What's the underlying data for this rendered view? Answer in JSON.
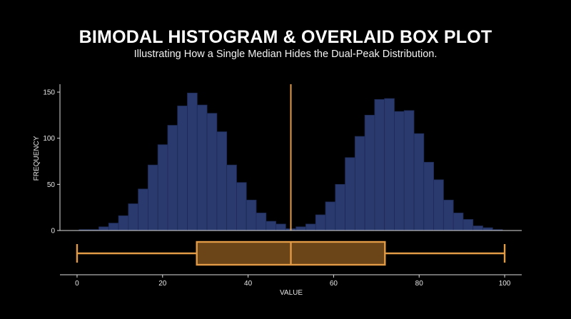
{
  "chart_data": {
    "type": "bar",
    "title": "BIMODAL HISTOGRAM & OVERLAID BOX PLOT",
    "subtitle": "Illustrating How a Single Median Hides the Dual-Peak Distribution.",
    "xlabel": "VALUE",
    "ylabel": "FREQUENCY",
    "xlim": [
      -4,
      104
    ],
    "ylim": [
      0,
      157
    ],
    "x_ticks": [
      0,
      20,
      40,
      60,
      80,
      100
    ],
    "y_ticks": [
      0,
      50,
      100,
      150
    ],
    "median_line": 50,
    "histogram": {
      "bin_width": 2.3,
      "bins": [
        {
          "x0": 0.5,
          "count": 1
        },
        {
          "x0": 2.8,
          "count": 1
        },
        {
          "x0": 5.1,
          "count": 4
        },
        {
          "x0": 7.4,
          "count": 8
        },
        {
          "x0": 9.7,
          "count": 16
        },
        {
          "x0": 12.0,
          "count": 29
        },
        {
          "x0": 14.3,
          "count": 45
        },
        {
          "x0": 16.6,
          "count": 71
        },
        {
          "x0": 18.9,
          "count": 93
        },
        {
          "x0": 21.2,
          "count": 114
        },
        {
          "x0": 23.5,
          "count": 135
        },
        {
          "x0": 25.8,
          "count": 149
        },
        {
          "x0": 28.1,
          "count": 136
        },
        {
          "x0": 30.4,
          "count": 127
        },
        {
          "x0": 32.7,
          "count": 107
        },
        {
          "x0": 35.0,
          "count": 71
        },
        {
          "x0": 37.3,
          "count": 52
        },
        {
          "x0": 39.6,
          "count": 33
        },
        {
          "x0": 41.9,
          "count": 19
        },
        {
          "x0": 44.2,
          "count": 10
        },
        {
          "x0": 46.5,
          "count": 7
        },
        {
          "x0": 48.8,
          "count": 2
        },
        {
          "x0": 51.2,
          "count": 4
        },
        {
          "x0": 53.5,
          "count": 7
        },
        {
          "x0": 55.8,
          "count": 17
        },
        {
          "x0": 58.1,
          "count": 31
        },
        {
          "x0": 60.4,
          "count": 50
        },
        {
          "x0": 62.7,
          "count": 79
        },
        {
          "x0": 65.0,
          "count": 102
        },
        {
          "x0": 67.3,
          "count": 125
        },
        {
          "x0": 69.6,
          "count": 142
        },
        {
          "x0": 71.9,
          "count": 143
        },
        {
          "x0": 74.2,
          "count": 129
        },
        {
          "x0": 76.5,
          "count": 130
        },
        {
          "x0": 78.8,
          "count": 105
        },
        {
          "x0": 81.1,
          "count": 74
        },
        {
          "x0": 83.4,
          "count": 55
        },
        {
          "x0": 85.7,
          "count": 33
        },
        {
          "x0": 88.0,
          "count": 19
        },
        {
          "x0": 90.3,
          "count": 12
        },
        {
          "x0": 92.6,
          "count": 5
        },
        {
          "x0": 94.9,
          "count": 3
        },
        {
          "x0": 97.2,
          "count": 1
        }
      ]
    },
    "boxplot": {
      "min": 0,
      "q1": 28,
      "median": 50,
      "q3": 72,
      "max": 100
    },
    "colors": {
      "bar_fill": "#2a3a6e",
      "bar_stroke": "#1d2a55",
      "box_stroke": "#e19a45",
      "box_fill": "#6b4417",
      "axis": "#dddddd",
      "background": "#000000"
    },
    "grid": false,
    "legend": "none"
  }
}
